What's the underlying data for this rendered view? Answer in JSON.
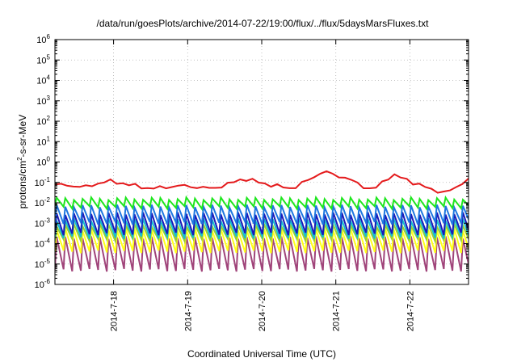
{
  "chart_data": {
    "type": "line",
    "title": "/data/run/goesPlots/archive/2014-07-22/19:00/flux/../flux/5daysMarsFluxes.txt",
    "xlabel": "Coordinated Universal Time (UTC)",
    "ylabel_parts": [
      "protons/cm",
      "2",
      "-s-sr-MeV"
    ],
    "x_scale": "time",
    "xlim": [
      "2014-07-17T05:00",
      "2014-07-22T19:00"
    ],
    "x_ticks": [
      "2014-7-18",
      "2014-7-19",
      "2014-7-20",
      "2014-7-21",
      "2014-7-22"
    ],
    "y_scale": "log",
    "ylim": [
      1e-06,
      1000000.0
    ],
    "y_tick_exponents": [
      "-6",
      "-5",
      "-4",
      "-3",
      "-2",
      "-1",
      "0",
      "1",
      "2",
      "3",
      "4",
      "5",
      "6"
    ],
    "y_tick_base": "10",
    "grid": true,
    "legend": "none",
    "sawtooth_cycle_hours": 2.8,
    "series": [
      {
        "color": "#e41a1c",
        "envelope": [
          [
            "2014-07-17T05:00",
            0.08
          ],
          [
            "2014-07-17T15:00",
            0.06
          ],
          [
            "2014-07-17T22:00",
            0.12
          ],
          [
            "2014-07-18T03:00",
            0.09
          ],
          [
            "2014-07-18T12:00",
            0.05
          ],
          [
            "2014-07-18T22:00",
            0.07
          ],
          [
            "2014-07-19T08:00",
            0.05
          ],
          [
            "2014-07-19T14:00",
            0.09
          ],
          [
            "2014-07-19T18:00",
            0.16
          ],
          [
            "2014-07-20T02:00",
            0.08
          ],
          [
            "2014-07-20T10:00",
            0.05
          ],
          [
            "2014-07-20T20:00",
            0.35
          ],
          [
            "2014-07-21T04:00",
            0.15
          ],
          [
            "2014-07-21T12:00",
            0.04
          ],
          [
            "2014-07-21T18:00",
            0.25
          ],
          [
            "2014-07-22T00:00",
            0.12
          ],
          [
            "2014-07-22T06:00",
            0.05
          ],
          [
            "2014-07-22T12:00",
            0.03
          ],
          [
            "2014-07-22T19:00",
            0.15
          ]
        ]
      },
      {
        "color": "#1ee61e",
        "envelope": [
          [
            "2014-07-17T05:00",
            [
              0.006,
              0.016
            ]
          ],
          [
            "2014-07-22T19:00",
            [
              0.006,
              0.016
            ]
          ]
        ]
      },
      {
        "color": "#1f77e0",
        "envelope": [
          [
            "2014-07-17T05:00",
            [
              0.001,
              0.007
            ]
          ],
          [
            "2014-07-22T19:00",
            [
              0.001,
              0.007
            ]
          ]
        ]
      },
      {
        "color": "#1a1ab8",
        "envelope": [
          [
            "2014-07-17T05:00",
            [
              0.0003,
              0.003
            ]
          ],
          [
            "2014-07-22T19:00",
            [
              0.0003,
              0.003
            ]
          ]
        ]
      },
      {
        "color": "#17becf",
        "envelope": [
          [
            "2014-07-17T05:00",
            [
              0.0002,
              0.0015
            ]
          ],
          [
            "2014-07-22T19:00",
            [
              0.0002,
              0.0015
            ]
          ]
        ]
      },
      {
        "color": "#9acd32",
        "envelope": [
          [
            "2014-07-17T05:00",
            [
              0.00015,
              0.0008
            ]
          ],
          [
            "2014-07-22T19:00",
            [
              0.00015,
              0.0008
            ]
          ]
        ]
      },
      {
        "color": "#ffff1a",
        "envelope": [
          [
            "2014-07-17T05:00",
            [
              4e-05,
              0.0005
            ]
          ],
          [
            "2014-07-22T19:00",
            [
              4e-05,
              0.0005
            ]
          ]
        ]
      },
      {
        "color": "#a0447a",
        "envelope": [
          [
            "2014-07-17T05:00",
            [
              5e-06,
              0.0002
            ]
          ],
          [
            "2014-07-22T19:00",
            [
              5e-06,
              0.0002
            ]
          ]
        ]
      }
    ]
  }
}
